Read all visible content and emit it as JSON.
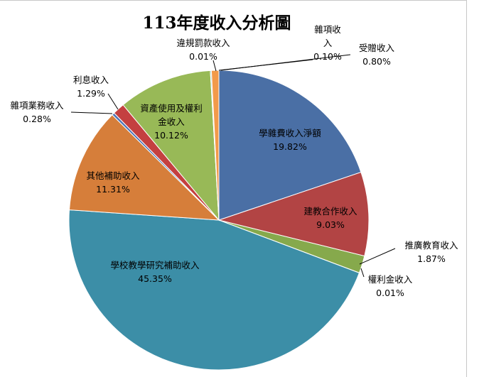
{
  "chart_data": {
    "type": "pie",
    "title": "113年度收入分析圖",
    "slices": [
      {
        "name": "學雜費收入淨額",
        "value": 19.82,
        "value_label": "19.82%",
        "color": "#4a6fa5"
      },
      {
        "name": "建教合作收入",
        "value": 9.03,
        "value_label": "9.03%",
        "color": "#b24444"
      },
      {
        "name": "推廣教育收入",
        "value": 1.87,
        "value_label": "1.87%",
        "color": "#86a94c"
      },
      {
        "name": "權利金收入",
        "value": 0.01,
        "value_label": "0.01%",
        "color": "#7b5fa3"
      },
      {
        "name": "學校教學研究補助收入",
        "value": 45.35,
        "value_label": "45.35%",
        "color": "#3c8ea7"
      },
      {
        "name": "其他補助收入",
        "value": 11.31,
        "value_label": "11.31%",
        "color": "#d67e3a"
      },
      {
        "name": "雜項業務收入",
        "value": 0.28,
        "value_label": "0.28%",
        "color": "#4d73b6"
      },
      {
        "name": "利息收入",
        "value": 1.29,
        "value_label": "1.29%",
        "color": "#c44040"
      },
      {
        "name": "資產使用及權利金收入",
        "value": 10.12,
        "value_label": "10.12%",
        "color": "#98b957"
      },
      {
        "name": "違規罰款收入",
        "value": 0.01,
        "value_label": "0.01%",
        "color": "#7a5a9e"
      },
      {
        "name": "雜項收入",
        "value": 0.1,
        "value_label": "0.10%",
        "color": "#2fa3c4"
      },
      {
        "name": "受贈收入",
        "value": 0.8,
        "value_label": "0.80%",
        "color": "#f29a4a"
      }
    ],
    "legend": "none"
  }
}
